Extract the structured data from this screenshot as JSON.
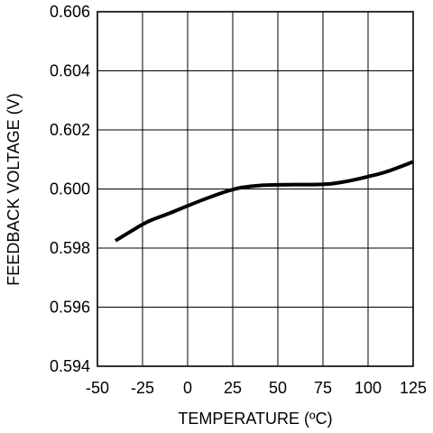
{
  "chart_data": {
    "type": "line",
    "title": "",
    "xlabel": "TEMPERATURE (ºC)",
    "ylabel": "FEEDBACK VOLTAGE (V)",
    "xlim": [
      -50,
      125
    ],
    "ylim": [
      0.594,
      0.606
    ],
    "x_ticks": [
      -50,
      -25,
      0,
      25,
      50,
      75,
      100,
      125
    ],
    "x_tick_labels": [
      "-50",
      "-25",
      "0",
      "25",
      "50",
      "75",
      "100",
      "125"
    ],
    "y_ticks": [
      0.594,
      0.596,
      0.598,
      0.6,
      0.602,
      0.604,
      0.606
    ],
    "y_tick_labels": [
      "0.594",
      "0.596",
      "0.598",
      "0.600",
      "0.602",
      "0.604",
      "0.606"
    ],
    "grid": true,
    "legend": "none",
    "series": [
      {
        "color": "#000000",
        "x": [
          -40,
          -30,
          -25,
          -20,
          -10,
          0,
          10,
          20,
          25,
          30,
          40,
          50,
          60,
          70,
          75,
          80,
          90,
          100,
          110,
          125
        ],
        "y": [
          0.59825,
          0.59862,
          0.5988,
          0.59895,
          0.59918,
          0.59943,
          0.59967,
          0.59989,
          0.59998,
          0.60005,
          0.60012,
          0.60014,
          0.60015,
          0.60015,
          0.60016,
          0.60018,
          0.60028,
          0.60042,
          0.60058,
          0.60092
        ]
      }
    ]
  }
}
